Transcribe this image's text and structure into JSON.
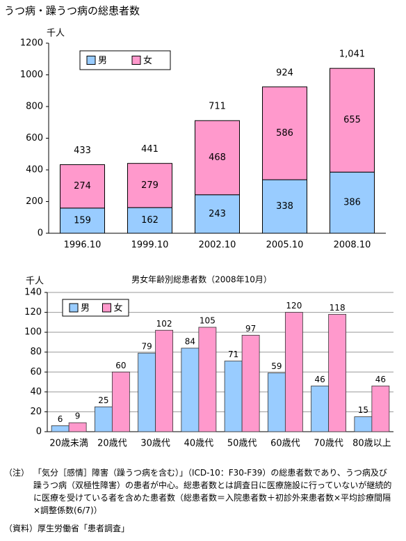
{
  "chart_data": [
    {
      "type": "bar",
      "stacked": true,
      "title": "うつ病・躁うつ病の総患者数",
      "y_unit": "千人",
      "categories": [
        "1996.10",
        "1999.10",
        "2002.10",
        "2005.10",
        "2008.10"
      ],
      "series": [
        {
          "name": "男",
          "color": "#99ccff",
          "values": [
            159,
            162,
            243,
            338,
            386
          ]
        },
        {
          "name": "女",
          "color": "#ff99cc",
          "values": [
            274,
            279,
            468,
            586,
            655
          ]
        }
      ],
      "totals": {
        "values": [
          433,
          441,
          711,
          924,
          1041
        ],
        "value_labels": [
          "433",
          "441",
          "711",
          "924",
          "1,041"
        ]
      },
      "ylim": [
        0,
        1200
      ],
      "yticks": [
        0,
        200,
        400,
        600,
        800,
        1000,
        1200
      ],
      "grid": false,
      "legend": "top-left"
    },
    {
      "type": "bar",
      "stacked": false,
      "title": "男女年齢別総患者数（2008年10月）",
      "y_unit": "千人",
      "categories": [
        "20歳未満",
        "20歳代",
        "30歳代",
        "40歳代",
        "50歳代",
        "60歳代",
        "70歳代",
        "80歳以上"
      ],
      "series": [
        {
          "name": "男",
          "color": "#99ccff",
          "values": [
            6,
            25,
            79,
            84,
            71,
            59,
            46,
            15
          ]
        },
        {
          "name": "女",
          "color": "#ff99cc",
          "values": [
            9,
            60,
            102,
            105,
            97,
            120,
            118,
            46
          ]
        }
      ],
      "ylim": [
        0,
        140
      ],
      "yticks": [
        0,
        20,
        40,
        60,
        80,
        100,
        120,
        140
      ],
      "grid": true,
      "legend": "top-left"
    }
  ],
  "note_label": "（注）",
  "note": "「気分［感情］障害（躁うつ病を含む）」（ICD-10：F30-F39）の総患者数であり、うつ病及び躁うつ病（双極性障害）の患者が中心。総患者数とは調査日に医療施設に行っていないが継続的に医療を受けている者を含めた患者数（総患者数＝入院患者数＋初診外来患者数×平均診療間隔×調整係数(6/7)）",
  "source_label": "（資料）",
  "source": "厚生労働省「患者調査」"
}
